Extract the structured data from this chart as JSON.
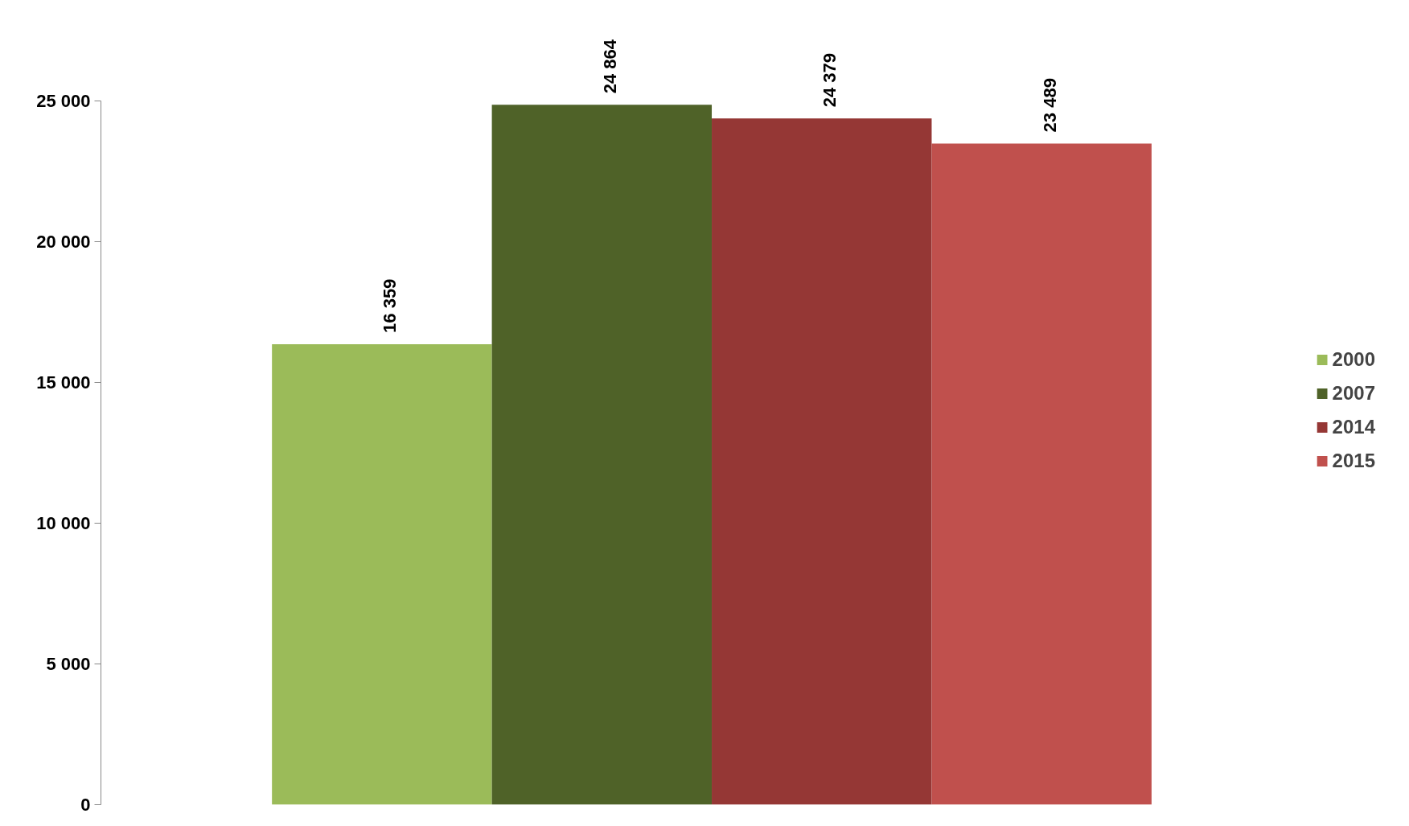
{
  "chart_data": {
    "type": "bar",
    "categories": [
      null
    ],
    "series": [
      {
        "name": "2000",
        "color": "#9bbb59",
        "values": [
          16359
        ]
      },
      {
        "name": "2007",
        "color": "#4f6228",
        "values": [
          24864
        ]
      },
      {
        "name": "2014",
        "color": "#953735",
        "values": [
          24379
        ]
      },
      {
        "name": "2015",
        "color": "#c0504d",
        "values": [
          23489
        ]
      }
    ],
    "ylim": [
      0,
      25000
    ],
    "yticks": [
      0,
      {
        "value": 5000,
        "label": "5 000"
      },
      {
        "value": 10000,
        "label": "10 000"
      },
      {
        "value": 15000,
        "label": "15 000"
      },
      {
        "value": 20000,
        "label": "20 000"
      },
      {
        "value": 25000,
        "label": "25 000"
      }
    ],
    "data_labels": true,
    "grid": false,
    "legend": "right"
  }
}
